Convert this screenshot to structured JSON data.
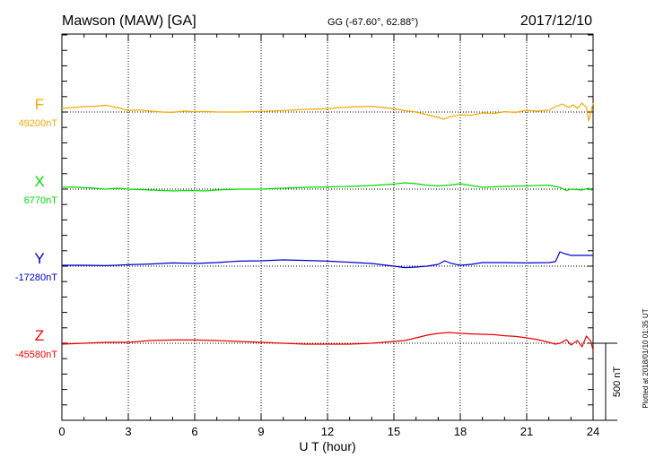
{
  "header": {
    "station": "Mawson (MAW)  [GA]",
    "coords": "GG (-67.60°,  62.88°)",
    "date": "2017/12/10"
  },
  "footer": {
    "plotted": "Plotted at 2018/01/10 01:35 UT"
  },
  "chart_data": {
    "type": "line",
    "xlabel": "U T (hour)",
    "xlim": [
      0,
      24
    ],
    "xticks": [
      "0",
      "3",
      "6",
      "9",
      "12",
      "15",
      "18",
      "21",
      "24"
    ],
    "grid": true,
    "scale_bar": {
      "label": "500 nT",
      "value_nT": 500
    },
    "colors": {
      "F": "#f5a800",
      "X": "#00dd00",
      "Y": "#0000cc",
      "Z": "#ee0000"
    },
    "series": [
      {
        "name": "F",
        "baseline_label": "49200nT",
        "baseline_nT": 49200,
        "points": [
          [
            0,
            -20
          ],
          [
            0.5,
            -25
          ],
          [
            1,
            -30
          ],
          [
            1.5,
            -32
          ],
          [
            2,
            -38
          ],
          [
            2.5,
            -25
          ],
          [
            3,
            -8
          ],
          [
            3.5,
            -12
          ],
          [
            4,
            -5
          ],
          [
            4.5,
            0
          ],
          [
            5,
            2
          ],
          [
            5.5,
            -5
          ],
          [
            6,
            -2
          ],
          [
            6.5,
            -3
          ],
          [
            7,
            0
          ],
          [
            8,
            0
          ],
          [
            9,
            -4
          ],
          [
            10,
            -8
          ],
          [
            11,
            -15
          ],
          [
            12,
            -18
          ],
          [
            12.5,
            -25
          ],
          [
            13,
            -28
          ],
          [
            13.5,
            -30
          ],
          [
            14,
            -32
          ],
          [
            14.5,
            -25
          ],
          [
            15,
            -18
          ],
          [
            15.5,
            -8
          ],
          [
            16,
            0
          ],
          [
            16.5,
            15
          ],
          [
            17,
            30
          ],
          [
            17.25,
            40
          ],
          [
            17.5,
            28
          ],
          [
            18,
            15
          ],
          [
            18.5,
            18
          ],
          [
            19,
            5
          ],
          [
            19.5,
            8
          ],
          [
            20,
            -2
          ],
          [
            20.5,
            2
          ],
          [
            21,
            -10
          ],
          [
            21.5,
            -5
          ],
          [
            22,
            -10
          ],
          [
            22.3,
            -30
          ],
          [
            22.6,
            -45
          ],
          [
            22.9,
            -25
          ],
          [
            23.1,
            -40
          ],
          [
            23.3,
            -20
          ],
          [
            23.5,
            -50
          ],
          [
            23.7,
            -25
          ],
          [
            23.8,
            50
          ],
          [
            24,
            -50
          ]
        ]
      },
      {
        "name": "X",
        "baseline_label": "6770nT",
        "baseline_nT": 6770,
        "points": [
          [
            0,
            -10
          ],
          [
            0.5,
            -12
          ],
          [
            1,
            -8
          ],
          [
            1.5,
            -5
          ],
          [
            2,
            0
          ],
          [
            2.5,
            -5
          ],
          [
            3,
            0
          ],
          [
            4,
            5
          ],
          [
            5,
            10
          ],
          [
            5.5,
            8
          ],
          [
            6,
            8
          ],
          [
            6.5,
            10
          ],
          [
            7,
            5
          ],
          [
            8,
            0
          ],
          [
            9,
            0
          ],
          [
            10,
            -5
          ],
          [
            11,
            -10
          ],
          [
            12,
            -12
          ],
          [
            13,
            -15
          ],
          [
            14,
            -20
          ],
          [
            15,
            -28
          ],
          [
            15.5,
            -35
          ],
          [
            16,
            -30
          ],
          [
            16.5,
            -22
          ],
          [
            17,
            -18
          ],
          [
            17.5,
            -22
          ],
          [
            18,
            -30
          ],
          [
            18.5,
            -20
          ],
          [
            19,
            -10
          ],
          [
            20,
            -15
          ],
          [
            21,
            -18
          ],
          [
            22,
            -22
          ],
          [
            22.5,
            -10
          ],
          [
            22.8,
            8
          ],
          [
            23,
            0
          ],
          [
            23.5,
            5
          ],
          [
            23.8,
            -5
          ],
          [
            24,
            10
          ]
        ]
      },
      {
        "name": "Y",
        "baseline_label": "-17280nT",
        "baseline_nT": -17280,
        "points": [
          [
            0,
            -5
          ],
          [
            1,
            -5
          ],
          [
            2,
            -3
          ],
          [
            3,
            -8
          ],
          [
            4,
            -12
          ],
          [
            5,
            -18
          ],
          [
            6,
            -15
          ],
          [
            7,
            -20
          ],
          [
            8,
            -28
          ],
          [
            9,
            -30
          ],
          [
            10,
            -35
          ],
          [
            11,
            -32
          ],
          [
            12,
            -28
          ],
          [
            13,
            -22
          ],
          [
            14,
            -15
          ],
          [
            15,
            0
          ],
          [
            15.5,
            8
          ],
          [
            16,
            5
          ],
          [
            16.5,
            0
          ],
          [
            17,
            -10
          ],
          [
            17.3,
            -30
          ],
          [
            17.6,
            -15
          ],
          [
            18,
            -5
          ],
          [
            18.5,
            -10
          ],
          [
            19,
            -20
          ],
          [
            20,
            -20
          ],
          [
            21,
            -18
          ],
          [
            22,
            -20
          ],
          [
            22.3,
            -25
          ],
          [
            22.5,
            -80
          ],
          [
            22.7,
            -70
          ],
          [
            23,
            -60
          ],
          [
            23.5,
            -60
          ],
          [
            24,
            -60
          ]
        ]
      },
      {
        "name": "Z",
        "baseline_label": "-45580nT",
        "baseline_nT": -45580,
        "points": [
          [
            0,
            5
          ],
          [
            1,
            0
          ],
          [
            2,
            -5
          ],
          [
            3,
            -5
          ],
          [
            4,
            -15
          ],
          [
            5,
            -18
          ],
          [
            6,
            -18
          ],
          [
            7,
            -15
          ],
          [
            8,
            -10
          ],
          [
            9,
            -5
          ],
          [
            10,
            0
          ],
          [
            11,
            5
          ],
          [
            12,
            5
          ],
          [
            13,
            5
          ],
          [
            14,
            0
          ],
          [
            15,
            -10
          ],
          [
            15.5,
            -15
          ],
          [
            16,
            -30
          ],
          [
            16.5,
            -45
          ],
          [
            17,
            -55
          ],
          [
            17.5,
            -60
          ],
          [
            18,
            -55
          ],
          [
            18.5,
            -52
          ],
          [
            19,
            -50
          ],
          [
            19.5,
            -48
          ],
          [
            20,
            -42
          ],
          [
            20.5,
            -38
          ],
          [
            21,
            -30
          ],
          [
            21.5,
            -20
          ],
          [
            22,
            -5
          ],
          [
            22.3,
            5
          ],
          [
            22.5,
            0
          ],
          [
            22.8,
            -20
          ],
          [
            23,
            10
          ],
          [
            23.3,
            -15
          ],
          [
            23.5,
            20
          ],
          [
            23.7,
            -40
          ],
          [
            23.9,
            -10
          ],
          [
            24,
            40
          ]
        ]
      }
    ]
  }
}
